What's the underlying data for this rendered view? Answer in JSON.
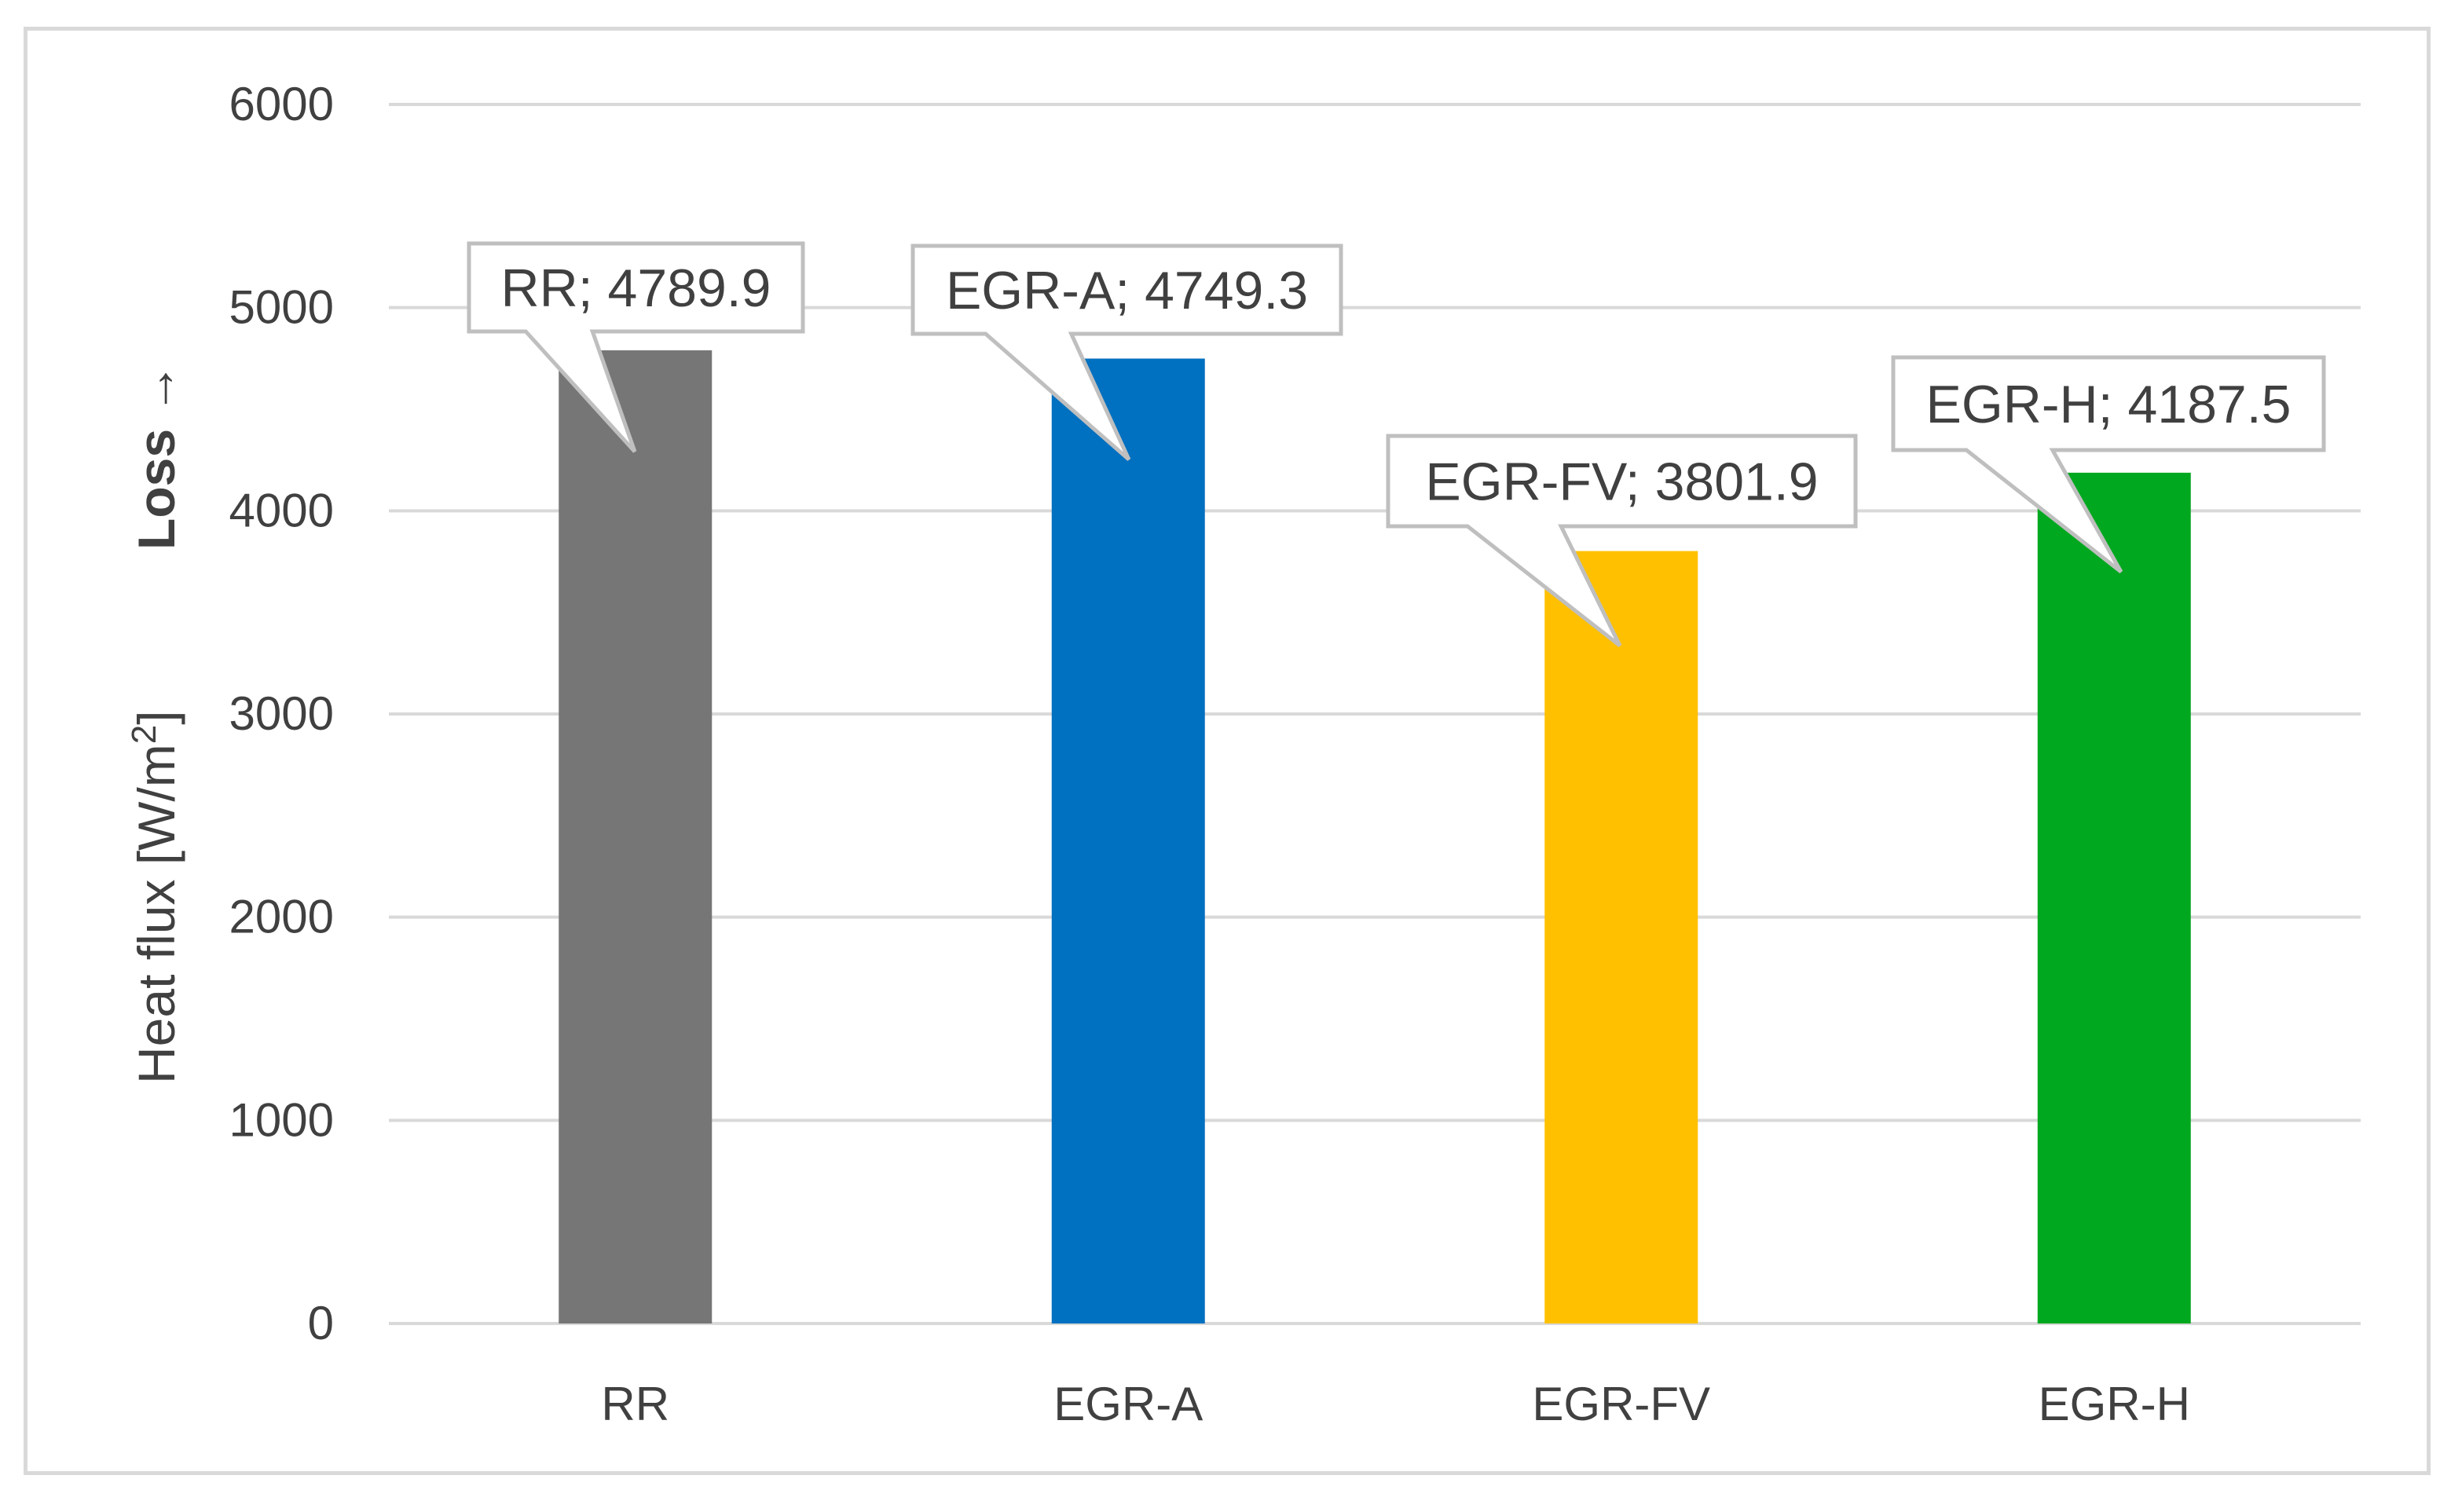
{
  "chart_data": {
    "type": "bar",
    "categories": [
      "RR",
      "EGR-A",
      "EGR-FV",
      "EGR-H"
    ],
    "values": [
      4789.9,
      4749.3,
      3801.9,
      4187.5
    ],
    "colors": [
      "#767676",
      "#0070c0",
      "#ffc000",
      "#00a81f"
    ],
    "data_labels": [
      "RR; 4789.9",
      "EGR-A; 4749.3",
      "EGR-FV; 3801.9",
      "EGR-H; 4187.5"
    ],
    "ylabel": "Heat flux [W/m",
    "ylabel_superscript": "2",
    "ylabel_suffix": "]",
    "ylabel_direction_note": "Loss →",
    "ylim": [
      0,
      6000
    ],
    "yticks": [
      0,
      1000,
      2000,
      3000,
      4000,
      5000,
      6000
    ],
    "grid": true,
    "legend": "none"
  }
}
